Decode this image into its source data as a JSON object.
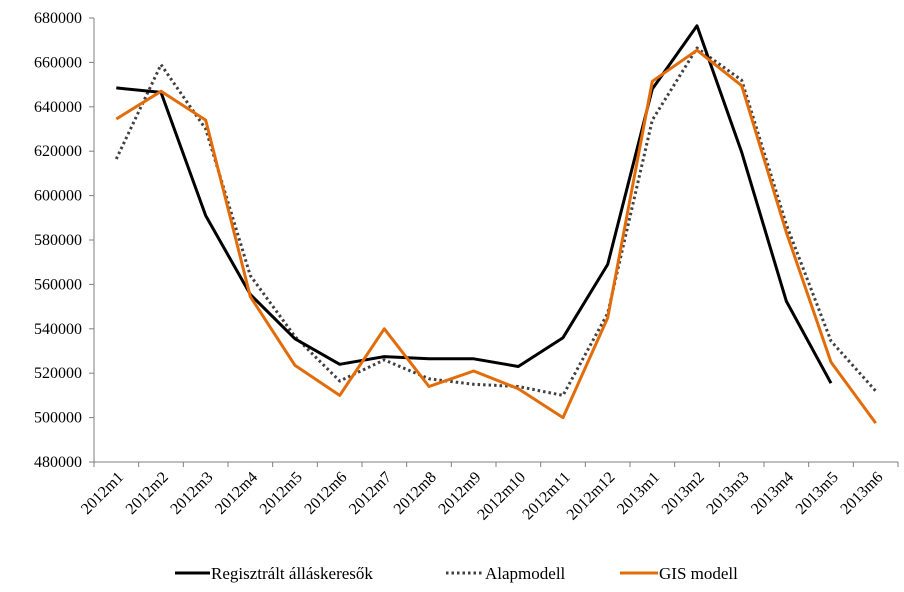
{
  "chart_data": {
    "type": "line",
    "title": "",
    "xlabel": "",
    "ylabel": "",
    "ylim": [
      480000,
      680000
    ],
    "yticks": [
      480000,
      500000,
      520000,
      540000,
      560000,
      580000,
      600000,
      620000,
      640000,
      660000,
      680000
    ],
    "grid": false,
    "legend_position": "bottom",
    "categories": [
      "2012m1",
      "2012m2",
      "2012m3",
      "2012m4",
      "2012m5",
      "2012m6",
      "2012m7",
      "2012m8",
      "2012m9",
      "2012m10",
      "2012m11",
      "2012m12",
      "2013m1",
      "2013m2",
      "2013m3",
      "2013m4",
      "2013m5",
      "2013m6"
    ],
    "series": [
      {
        "name": "Regisztrált álláskeresők",
        "color": "#000000",
        "style": "solid",
        "values": [
          648500,
          646500,
          591000,
          555500,
          535500,
          524000,
          527500,
          526500,
          526500,
          523000,
          536000,
          569000,
          648000,
          676500,
          619500,
          552500,
          515500,
          null
        ]
      },
      {
        "name": "Alapmodell",
        "color": "#404040",
        "style": "dotted",
        "values": [
          616500,
          659000,
          630000,
          564000,
          536500,
          516500,
          526000,
          517500,
          515000,
          514000,
          510000,
          547000,
          634000,
          666500,
          652000,
          587000,
          534500,
          512000
        ]
      },
      {
        "name": "GIS modell",
        "color": "#E36C0A",
        "style": "solid",
        "values": [
          634500,
          647000,
          634000,
          554500,
          523500,
          510000,
          540000,
          514000,
          521000,
          513000,
          500000,
          545000,
          651500,
          665500,
          649500,
          583500,
          525000,
          497500
        ]
      }
    ]
  }
}
